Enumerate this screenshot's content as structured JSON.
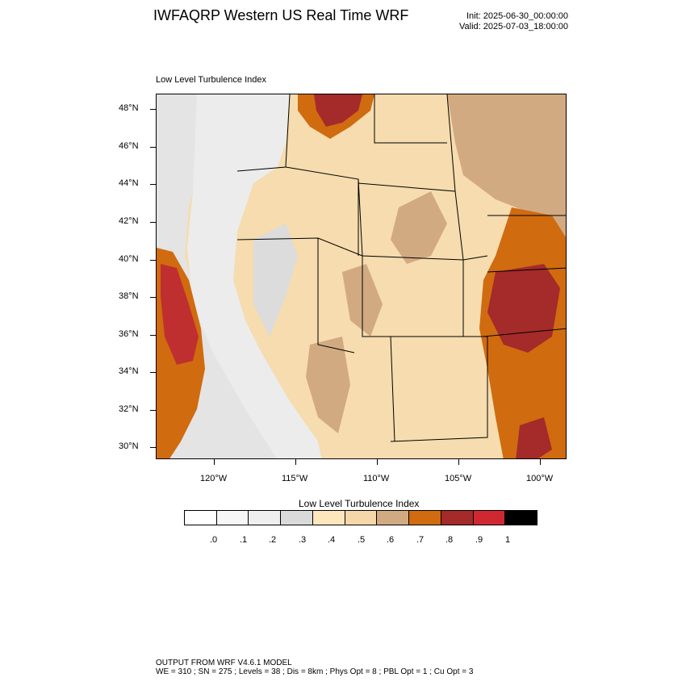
{
  "header": {
    "title": "IWFAQRP Western US Real Time WRF",
    "init": "Init: 2025-06-30_00:00:00",
    "valid": "Valid: 2025-07-03_18:00:00"
  },
  "map": {
    "field_label": "Low Level Turbulence Index",
    "lat_labels": [
      "48°N",
      "46°N",
      "44°N",
      "42°N",
      "40°N",
      "38°N",
      "36°N",
      "34°N",
      "32°N",
      "30°N"
    ],
    "lon_labels": [
      "120°W",
      "115°W",
      "110°W",
      "105°W",
      "100°W"
    ]
  },
  "colorbar": {
    "title": "Low Level Turbulence Index",
    "colors": [
      "#ffffff",
      "#f7f7f7",
      "#efefef",
      "#dadada",
      "#fde6bc",
      "#f6d7a8",
      "#d2aa82",
      "#d06b10",
      "#a52a2a",
      "#cf2830",
      "#000000"
    ],
    "labels": [
      ".0",
      ".1",
      ".2",
      ".3",
      ".4",
      ".5",
      ".6",
      ".7",
      ".8",
      ".9",
      "1"
    ]
  },
  "footer": {
    "line1": "OUTPUT FROM WRF V4.6.1 MODEL",
    "line2": "WE = 310 ; SN = 275 ; Levels = 38 ; Dis = 8km ; Phys Opt = 8 ; PBL Opt = 1 ; Cu Opt = 3"
  }
}
